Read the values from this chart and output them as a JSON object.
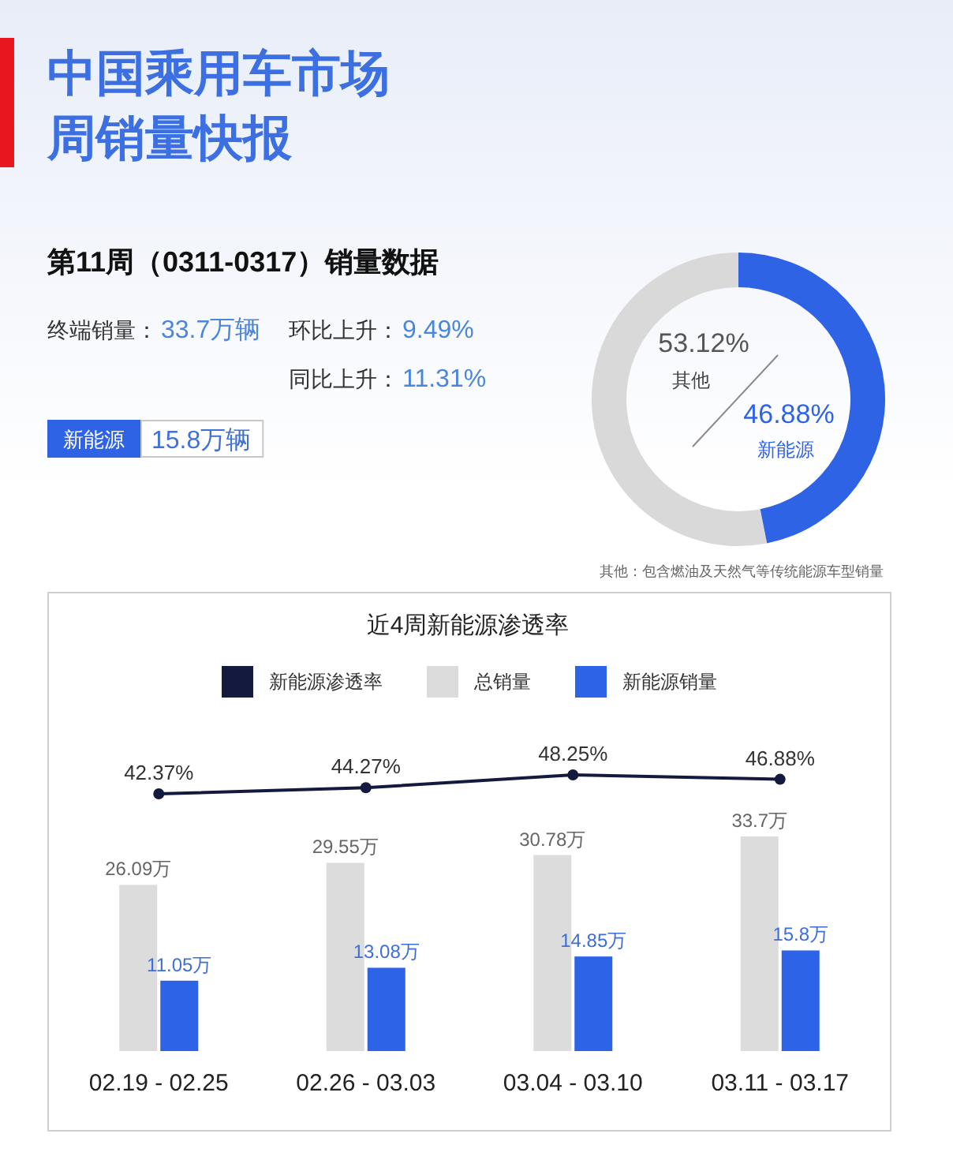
{
  "chart_data": [
    {
      "type": "other",
      "title": "中国乘用车市场",
      "subtitle": "周销量快报",
      "annotations": [
        "第11周（0311-0317）销量数据",
        "终端销量：",
        "33.7万辆",
        "环比上升：",
        "9.49%",
        "同比上升：",
        "11.31%",
        "新能源",
        "15.8万辆"
      ]
    },
    {
      "type": "donut",
      "categories": [
        "其他",
        "新能源"
      ],
      "values": [
        53.12,
        46.88
      ],
      "colors": [
        "#d9d9d9",
        "#2f63e6"
      ],
      "value_labels": [
        "53.12%",
        "46.88%"
      ],
      "annotations": [
        "其他：包含燃油及天然气等传统能源车型销量"
      ]
    },
    {
      "type": "line",
      "title": "近4周新能源渗透率",
      "categories": [
        null,
        null,
        null,
        null
      ],
      "legend": "top",
      "marker": "circle",
      "series": [
        {
          "name": "新能源渗透率",
          "color": "#141a3e",
          "values": [
            42.37,
            44.27,
            48.25,
            46.88
          ],
          "value_labels": [
            "42.37%",
            "44.27%",
            "48.25%",
            "46.88%"
          ]
        }
      ]
    },
    {
      "type": "bar",
      "categories": [
        "02.19 - 02.25",
        "02.26 - 03.03",
        "03.04 - 03.10",
        "03.11 - 03.17"
      ],
      "legend": "top",
      "tick_labels": "x",
      "series": [
        {
          "name": "总销量",
          "color": "#dcdcdc",
          "values": [
            26.09,
            29.55,
            30.78,
            33.7
          ],
          "value_labels": [
            "26.09万",
            "29.55万",
            "30.78万",
            "33.7万"
          ]
        },
        {
          "name": "新能源销量",
          "color": "#2d63e6",
          "values": [
            11.05,
            13.08,
            14.85,
            15.8
          ],
          "value_labels": [
            "11.05万",
            "13.08万",
            "14.85万",
            "15.8万"
          ]
        }
      ]
    }
  ]
}
